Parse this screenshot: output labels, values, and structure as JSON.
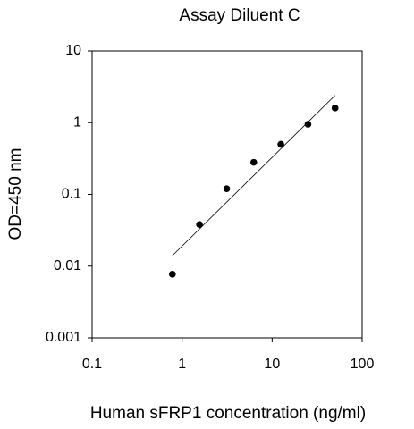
{
  "chart_data": {
    "type": "scatter",
    "title": "Assay Diluent C",
    "x_label": "Human sFRP1 concentration (ng/ml)",
    "y_label": "OD=450 nm",
    "xlog": true,
    "ylog": true,
    "xlim": [
      0.1,
      100
    ],
    "ylim": [
      0.001,
      10
    ],
    "xticks": [
      0.1,
      1,
      10,
      100
    ],
    "yticks": [
      0.001,
      0.01,
      0.1,
      1,
      10
    ],
    "series": [
      {
        "color": "#000000",
        "x": [
          0.78,
          1.56,
          3.13,
          6.25,
          12.5,
          25,
          50
        ],
        "values": [
          0.0077,
          0.038,
          0.12,
          0.28,
          0.5,
          0.95,
          1.6
        ]
      }
    ],
    "fit": {
      "color": "#000000",
      "x": [
        0.78,
        50
      ],
      "values": [
        0.014,
        2.4
      ]
    }
  }
}
